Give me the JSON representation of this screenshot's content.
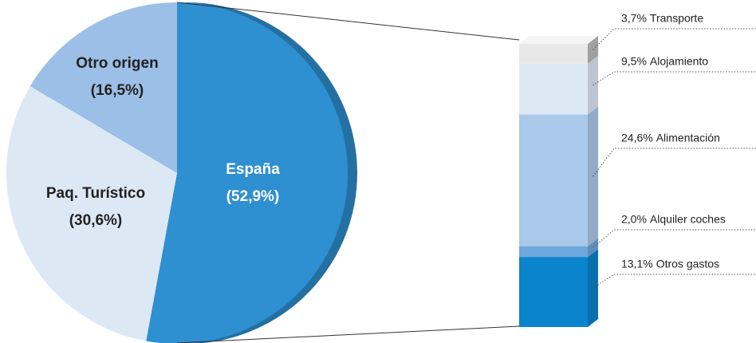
{
  "chart_data": [
    {
      "type": "pie",
      "categories": [
        "España",
        "Paq. Turístico",
        "Otro origen"
      ],
      "values": [
        52.9,
        30.6,
        16.5
      ],
      "value_labels": [
        "(52,9%)",
        "(30,6%)",
        "(16,5%)"
      ],
      "colors": [
        "#2e8fd1",
        "#dde8f5",
        "#9bbfe6"
      ]
    },
    {
      "type": "bar",
      "stacked": true,
      "series": [
        {
          "name": "Otros gastos",
          "color": "#0a84cc",
          "values": [
            13.1
          ],
          "value_labels": [
            "13,1%"
          ]
        },
        {
          "name": "Alquiler coches",
          "color": "#6ea8dc",
          "values": [
            2.0
          ],
          "value_labels": [
            "2,0%"
          ]
        },
        {
          "name": "Alimentación",
          "color": "#a9c8ea",
          "values": [
            24.6
          ],
          "value_labels": [
            "24,6%"
          ]
        },
        {
          "name": "Alojamiento",
          "color": "#dde8f5",
          "values": [
            9.5
          ],
          "value_labels": [
            "9,5%"
          ]
        },
        {
          "name": "Transporte",
          "color": "#e8e8e8",
          "values": [
            3.7
          ],
          "value_labels": [
            "3,7%"
          ]
        }
      ]
    }
  ]
}
